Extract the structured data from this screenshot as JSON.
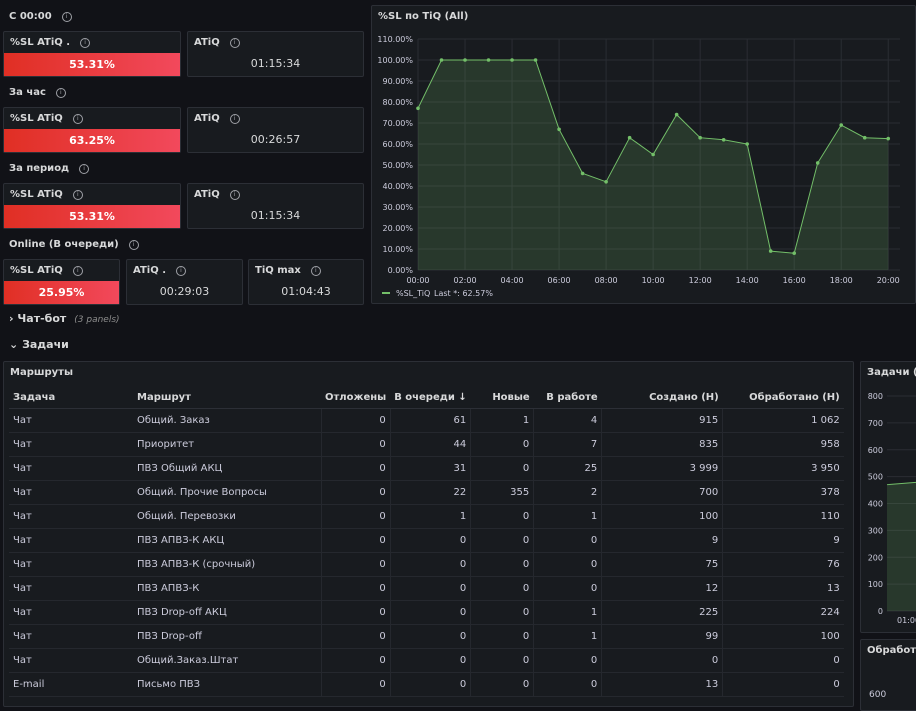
{
  "stat_sections": [
    {
      "label": "С 00:00",
      "sl_title": "%SL ATiQ .",
      "sl_value": "53.31%",
      "atiq_title": "ATiQ",
      "atiq_value": "01:15:34"
    },
    {
      "label": "За час",
      "sl_title": "%SL ATiQ",
      "sl_value": "63.25%",
      "atiq_title": "ATiQ",
      "atiq_value": "00:26:57"
    },
    {
      "label": "За период",
      "sl_title": "%SL ATiQ",
      "sl_value": "53.31%",
      "atiq_title": "ATiQ",
      "atiq_value": "01:15:34"
    }
  ],
  "online": {
    "label": "Online (В очереди)",
    "sl_title": "%SL ATiQ",
    "sl_value": "25.95%",
    "atiq_title": "ATiQ .",
    "atiq_value": "00:29:03",
    "tiqmax_title": "TiQ max",
    "tiqmax_value": "01:04:43"
  },
  "chart": {
    "title": "%SL по TiQ (All)",
    "legend_name": "%SL_TiQ",
    "legend_last": "Last *: 62.57%",
    "line_color": "#73bf69"
  },
  "chart_data": {
    "type": "line",
    "title": "%SL по TiQ (All)",
    "xlabel": "",
    "ylabel": "",
    "x_ticks": [
      "00:00",
      "02:00",
      "04:00",
      "06:00",
      "08:00",
      "10:00",
      "12:00",
      "14:00",
      "16:00",
      "18:00",
      "20:00"
    ],
    "y_ticks": [
      "0.00%",
      "10.00%",
      "20.00%",
      "30.00%",
      "40.00%",
      "50.00%",
      "60.00%",
      "70.00%",
      "80.00%",
      "90.00%",
      "100.00%",
      "110.00%"
    ],
    "ylim": [
      0,
      110
    ],
    "xlim_hours": [
      0,
      20.5
    ],
    "grid": true,
    "legend_position": "bottom-left",
    "series": [
      {
        "name": "%SL_TiQ",
        "x": [
          0,
          1,
          2,
          3,
          4,
          5,
          6,
          7,
          8,
          9,
          10,
          11,
          12,
          13,
          14,
          15,
          16,
          17,
          18,
          19,
          20
        ],
        "values": [
          77,
          100,
          100,
          100,
          100,
          100,
          67,
          46,
          42,
          63,
          55,
          74,
          63,
          62,
          60,
          9,
          8,
          51,
          69,
          63,
          62.57
        ]
      }
    ]
  },
  "rows": {
    "chatbot_title": "Чат-бот",
    "chatbot_sub": "(3 panels)",
    "tasks_title": "Задачи"
  },
  "routes": {
    "title": "Маршруты",
    "columns": [
      "Задача",
      "Маршрут",
      "Отложены",
      "В очереди",
      "Новые",
      "В работе",
      "Создано (Н)",
      "Обработано (Н)"
    ],
    "sort_icon": "↓",
    "rows": [
      [
        "Чат",
        "Общий. Заказ",
        "0",
        "61",
        "1",
        "4",
        "915",
        "1 062"
      ],
      [
        "Чат",
        "Приоритет",
        "0",
        "44",
        "0",
        "7",
        "835",
        "958"
      ],
      [
        "Чат",
        "ПВЗ Общий АКЦ",
        "0",
        "31",
        "0",
        "25",
        "3 999",
        "3 950"
      ],
      [
        "Чат",
        "Общий. Прочие Вопросы",
        "0",
        "22",
        "355",
        "2",
        "700",
        "378"
      ],
      [
        "Чат",
        "Общий. Перевозки",
        "0",
        "1",
        "0",
        "1",
        "100",
        "110"
      ],
      [
        "Чат",
        "ПВЗ АПВЗ-К АКЦ",
        "0",
        "0",
        "0",
        "0",
        "9",
        "9"
      ],
      [
        "Чат",
        "ПВЗ АПВЗ-К (срочный)",
        "0",
        "0",
        "0",
        "0",
        "75",
        "76"
      ],
      [
        "Чат",
        "ПВЗ АПВЗ-К",
        "0",
        "0",
        "0",
        "0",
        "12",
        "13"
      ],
      [
        "Чат",
        "ПВЗ Drop-off АКЦ",
        "0",
        "0",
        "0",
        "1",
        "225",
        "224"
      ],
      [
        "Чат",
        "ПВЗ Drop-off",
        "0",
        "0",
        "0",
        "1",
        "99",
        "100"
      ],
      [
        "Чат",
        "Общий.Заказ.Штат",
        "0",
        "0",
        "0",
        "0",
        "0",
        "0"
      ],
      [
        "E-mail",
        "Письмо ПВЗ",
        "0",
        "0",
        "0",
        "0",
        "13",
        "0"
      ]
    ]
  },
  "tasks_panel": {
    "title": "Задачи (All",
    "y_ticks": [
      "800",
      "700",
      "600",
      "500",
      "400",
      "300",
      "200",
      "100",
      "0"
    ],
    "x_tick": "01:00"
  },
  "processed_panel": {
    "title": "Обработка",
    "y_tick": "600"
  }
}
